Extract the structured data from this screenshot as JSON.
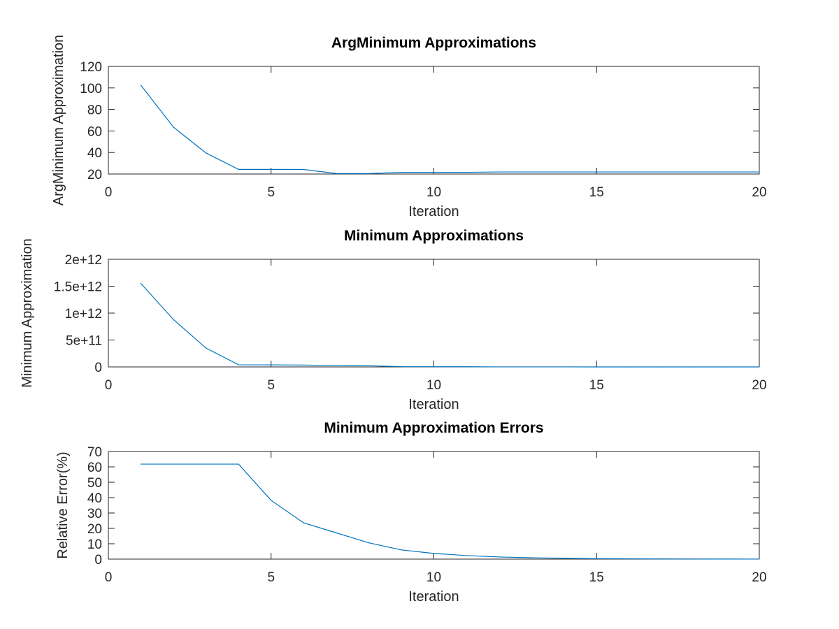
{
  "chart_data": [
    {
      "type": "line",
      "title": "ArgMinimum Approximations",
      "xlabel": "Iteration",
      "ylabel": "ArgMinimum Approximation",
      "xlim": [
        0,
        20
      ],
      "ylim": [
        20,
        120
      ],
      "xticks": [
        0,
        5,
        10,
        15,
        20
      ],
      "xtick_labels": [
        "0",
        "5",
        "10",
        "15",
        "20"
      ],
      "yticks": [
        20,
        40,
        60,
        80,
        100,
        120
      ],
      "ytick_labels": [
        "20",
        "40",
        "60",
        "80",
        100,
        120
      ],
      "grid": false,
      "color": "#0072BD",
      "series": [
        {
          "x": [
            1,
            2,
            3,
            4,
            5,
            6,
            7,
            8,
            9,
            10,
            11,
            12,
            13,
            14,
            15,
            16,
            17,
            18,
            19,
            20
          ],
          "values": [
            102.5,
            63.5,
            39.5,
            24.3,
            24.3,
            24.2,
            20.5,
            20.4,
            21.6,
            21.6,
            21.6,
            21.9,
            21.9,
            21.9,
            21.9,
            21.9,
            21.9,
            21.9,
            21.9,
            21.9
          ]
        }
      ]
    },
    {
      "type": "line",
      "title": "Minimum Approximations",
      "xlabel": "Iteration",
      "ylabel": "Minimum Approximation",
      "xlim": [
        0,
        20
      ],
      "ylim": [
        0,
        2000000000000
      ],
      "xticks": [
        0,
        5,
        10,
        15,
        20
      ],
      "xtick_labels": [
        "0",
        "5",
        "10",
        "15",
        "20"
      ],
      "yticks": [
        0,
        500000000000,
        1000000000000,
        1500000000000,
        2000000000000
      ],
      "ytick_labels": [
        "0",
        "5e+11",
        "1e+12",
        "1.5e+12",
        "2e+12"
      ],
      "grid": false,
      "color": "#0072BD",
      "series": [
        {
          "x": [
            1,
            2,
            3,
            4,
            5,
            6,
            7,
            8,
            9,
            10,
            11,
            12,
            13,
            14,
            15,
            16,
            17,
            18,
            19,
            20
          ],
          "values": [
            1550000000000,
            880000000000,
            350000000000,
            40000000000,
            38000000000,
            35000000000,
            25000000000,
            22000000000,
            5000000000,
            4000000000,
            3000000000,
            1000000000,
            800000000,
            500000000,
            300000000,
            200000000,
            100000000,
            50000000,
            20000000,
            10000000
          ]
        }
      ]
    },
    {
      "type": "line",
      "title": "Minimum Approximation Errors",
      "xlabel": "Iteration",
      "ylabel": "Relative Error(%)",
      "xlim": [
        0,
        20
      ],
      "ylim": [
        0,
        70
      ],
      "xticks": [
        0,
        5,
        10,
        15,
        20
      ],
      "xtick_labels": [
        "0",
        "5",
        "10",
        "15",
        "20"
      ],
      "yticks": [
        0,
        10,
        20,
        30,
        40,
        50,
        60,
        70
      ],
      "ytick_labels": [
        "0",
        "10",
        "20",
        "30",
        "40",
        "50",
        "60",
        "70"
      ],
      "grid": false,
      "color": "#0072BD",
      "series": [
        {
          "x": [
            1,
            2,
            3,
            4,
            5,
            6,
            7,
            8,
            9,
            10,
            11,
            12,
            13,
            14,
            15,
            16,
            17,
            18,
            19,
            20
          ],
          "values": [
            61.8,
            61.8,
            61.8,
            61.8,
            38.2,
            23.6,
            17.1,
            10.6,
            6.0,
            3.7,
            2.3,
            1.4,
            0.9,
            0.5,
            0.3,
            0.2,
            0.1,
            0.08,
            0.05,
            0.03
          ]
        }
      ]
    }
  ]
}
